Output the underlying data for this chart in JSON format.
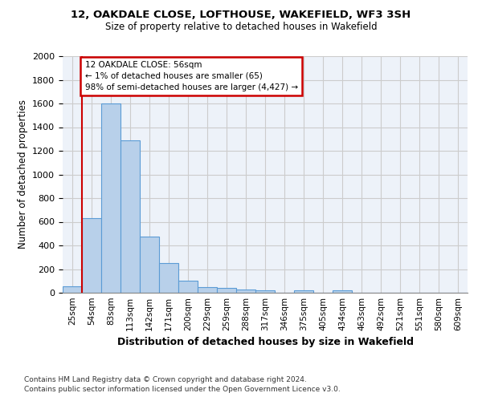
{
  "title1": "12, OAKDALE CLOSE, LOFTHOUSE, WAKEFIELD, WF3 3SH",
  "title2": "Size of property relative to detached houses in Wakefield",
  "xlabel": "Distribution of detached houses by size in Wakefield",
  "ylabel": "Number of detached properties",
  "footnote1": "Contains HM Land Registry data © Crown copyright and database right 2024.",
  "footnote2": "Contains public sector information licensed under the Open Government Licence v3.0.",
  "bar_labels": [
    "25sqm",
    "54sqm",
    "83sqm",
    "113sqm",
    "142sqm",
    "171sqm",
    "200sqm",
    "229sqm",
    "259sqm",
    "288sqm",
    "317sqm",
    "346sqm",
    "375sqm",
    "405sqm",
    "434sqm",
    "463sqm",
    "492sqm",
    "521sqm",
    "551sqm",
    "580sqm",
    "609sqm"
  ],
  "bar_values": [
    55,
    630,
    1600,
    1290,
    475,
    248,
    100,
    50,
    38,
    30,
    20,
    0,
    20,
    0,
    20,
    0,
    0,
    0,
    0,
    0,
    0
  ],
  "bar_color": "#b8d0ea",
  "bar_edge_color": "#5b9bd5",
  "red_line_x": 0.5,
  "annotation_text": "12 OAKDALE CLOSE: 56sqm\n← 1% of detached houses are smaller (65)\n98% of semi-detached houses are larger (4,427) →",
  "annotation_box_color": "#ffffff",
  "annotation_box_edge_color": "#cc0000",
  "ylim": [
    0,
    2000
  ],
  "yticks": [
    0,
    200,
    400,
    600,
    800,
    1000,
    1200,
    1400,
    1600,
    1800,
    2000
  ],
  "grid_color": "#cccccc",
  "background_color": "#edf2f9"
}
